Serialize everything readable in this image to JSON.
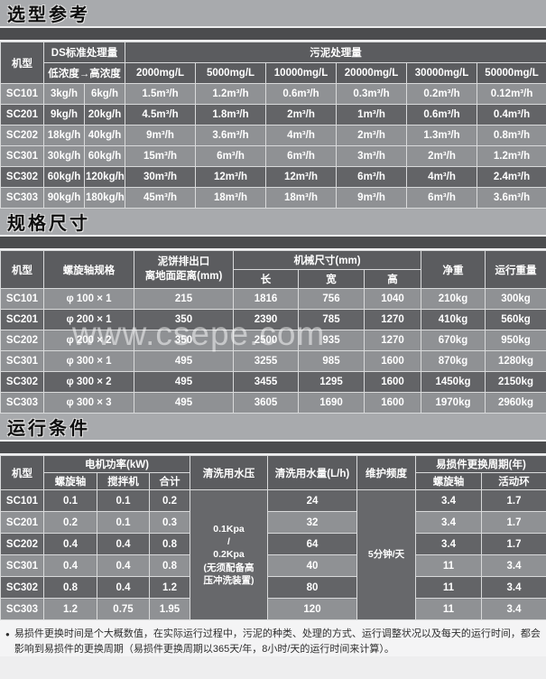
{
  "colors": {
    "title_bar_bg": "#a8aaad",
    "divider_strip": "#4b4c4e",
    "table_header_bg": "#5b5c5f",
    "row_light": "#8f9194",
    "row_dark": "#636467",
    "table_text": "#ffffff"
  },
  "t1": {
    "title": "选型参考",
    "header": {
      "model": "机型",
      "ds": "DS标准处理量",
      "ds_sub": "低浓度→高浓度",
      "sludge": "污泥处理量",
      "concentrations": [
        "2000mg/L",
        "5000mg/L",
        "10000mg/L",
        "20000mg/L",
        "30000mg/L",
        "50000mg/L"
      ]
    },
    "rows": [
      {
        "shade": "light",
        "cells": [
          "SC101",
          "3kg/h",
          "6kg/h",
          "1.5m³/h",
          "1.2m³/h",
          "0.6m³/h",
          "0.3m³/h",
          "0.2m³/h",
          "0.12m³/h"
        ]
      },
      {
        "shade": "dark",
        "cells": [
          "SC201",
          "9kg/h",
          "20kg/h",
          "4.5m³/h",
          "1.8m³/h",
          "2m³/h",
          "1m³/h",
          "0.6m³/h",
          "0.4m³/h"
        ]
      },
      {
        "shade": "light",
        "cells": [
          "SC202",
          "18kg/h",
          "40kg/h",
          "9m³/h",
          "3.6m³/h",
          "4m³/h",
          "2m³/h",
          "1.3m³/h",
          "0.8m³/h"
        ]
      },
      {
        "shade": "light",
        "cells": [
          "SC301",
          "30kg/h",
          "60kg/h",
          "15m³/h",
          "6m³/h",
          "6m³/h",
          "3m³/h",
          "2m³/h",
          "1.2m³/h"
        ]
      },
      {
        "shade": "dark",
        "cells": [
          "SC302",
          "60kg/h",
          "120kg/h",
          "30m³/h",
          "12m³/h",
          "12m³/h",
          "6m³/h",
          "4m³/h",
          "2.4m³/h"
        ]
      },
      {
        "shade": "light",
        "cells": [
          "SC303",
          "90kg/h",
          "180kg/h",
          "45m³/h",
          "18m³/h",
          "18m³/h",
          "9m³/h",
          "6m³/h",
          "3.6m³/h"
        ]
      }
    ]
  },
  "t2": {
    "title": "规格尺寸",
    "header": {
      "model": "机型",
      "shaft": "螺旋轴规格",
      "outlet": "泥饼排出口\n离地面距离(mm)",
      "dims": "机械尺寸(mm)",
      "length": "长",
      "width": "宽",
      "height": "高",
      "net_weight": "净重",
      "run_weight": "运行重量"
    },
    "rows": [
      {
        "shade": "light",
        "cells": [
          "SC101",
          "φ 100 × 1",
          "215",
          "1816",
          "756",
          "1040",
          "210kg",
          "300kg"
        ]
      },
      {
        "shade": "dark",
        "cells": [
          "SC201",
          "φ 200 × 1",
          "350",
          "2390",
          "785",
          "1270",
          "410kg",
          "560kg"
        ]
      },
      {
        "shade": "light",
        "cells": [
          "SC202",
          "φ 200 × 2",
          "350",
          "2500",
          "935",
          "1270",
          "670kg",
          "950kg"
        ]
      },
      {
        "shade": "light",
        "cells": [
          "SC301",
          "φ 300 × 1",
          "495",
          "3255",
          "985",
          "1600",
          "870kg",
          "1280kg"
        ]
      },
      {
        "shade": "dark",
        "cells": [
          "SC302",
          "φ 300 × 2",
          "495",
          "3455",
          "1295",
          "1600",
          "1450kg",
          "2150kg"
        ]
      },
      {
        "shade": "light",
        "cells": [
          "SC303",
          "φ 300 × 3",
          "495",
          "3605",
          "1690",
          "1600",
          "1970kg",
          "2960kg"
        ]
      }
    ]
  },
  "t3": {
    "title": "运行条件",
    "header": {
      "model": "机型",
      "motor_power": "电机功率(kW)",
      "screw": "螺旋轴",
      "mixer": "搅拌机",
      "total": "合计",
      "wash_pressure": "清洗用水压",
      "wash_volume": "清洗用水量(L/h)",
      "maintenance": "维护频度",
      "wear_cycle": "易损件更换周期(年)",
      "wear_screw": "螺旋轴",
      "wear_ring": "活动环"
    },
    "rows": [
      {
        "shade": "dark",
        "cells": [
          "SC101",
          "0.1",
          "0.1",
          "0.2",
          {
            "text": "0.1Kpa\n/\n0.2Kpa\n(无须配备高\n压冲洗装置)",
            "rowspan": 6,
            "dark": true
          },
          "24",
          {
            "text": "5分钟/天",
            "rowspan": 6,
            "dark": true
          },
          "3.4",
          "1.7"
        ]
      },
      {
        "shade": "light",
        "cells": [
          "SC201",
          "0.2",
          "0.1",
          "0.3",
          "32",
          "3.4",
          "1.7"
        ]
      },
      {
        "shade": "dark",
        "cells": [
          "SC202",
          "0.4",
          "0.4",
          "0.8",
          "64",
          "3.4",
          "1.7"
        ]
      },
      {
        "shade": "light",
        "cells": [
          "SC301",
          "0.4",
          "0.4",
          "0.8",
          "40",
          "11",
          "3.4"
        ]
      },
      {
        "shade": "dark",
        "cells": [
          "SC302",
          "0.8",
          "0.4",
          "1.2",
          "80",
          "11",
          "3.4"
        ]
      },
      {
        "shade": "light",
        "cells": [
          "SC303",
          "1.2",
          "0.75",
          "1.95",
          "120",
          "11",
          "3.4"
        ]
      }
    ]
  },
  "watermark": "www.csepe.com",
  "footnote": {
    "bullet": "●",
    "text": "易损件更换时间是个大概数值，在实际运行过程中，污泥的种类、处理的方式、运行调整状况以及每天的运行时间，都会影响到易损件的更换周期（易损件更换周期以365天/年，8小时/天的运行时间来计算）。"
  }
}
